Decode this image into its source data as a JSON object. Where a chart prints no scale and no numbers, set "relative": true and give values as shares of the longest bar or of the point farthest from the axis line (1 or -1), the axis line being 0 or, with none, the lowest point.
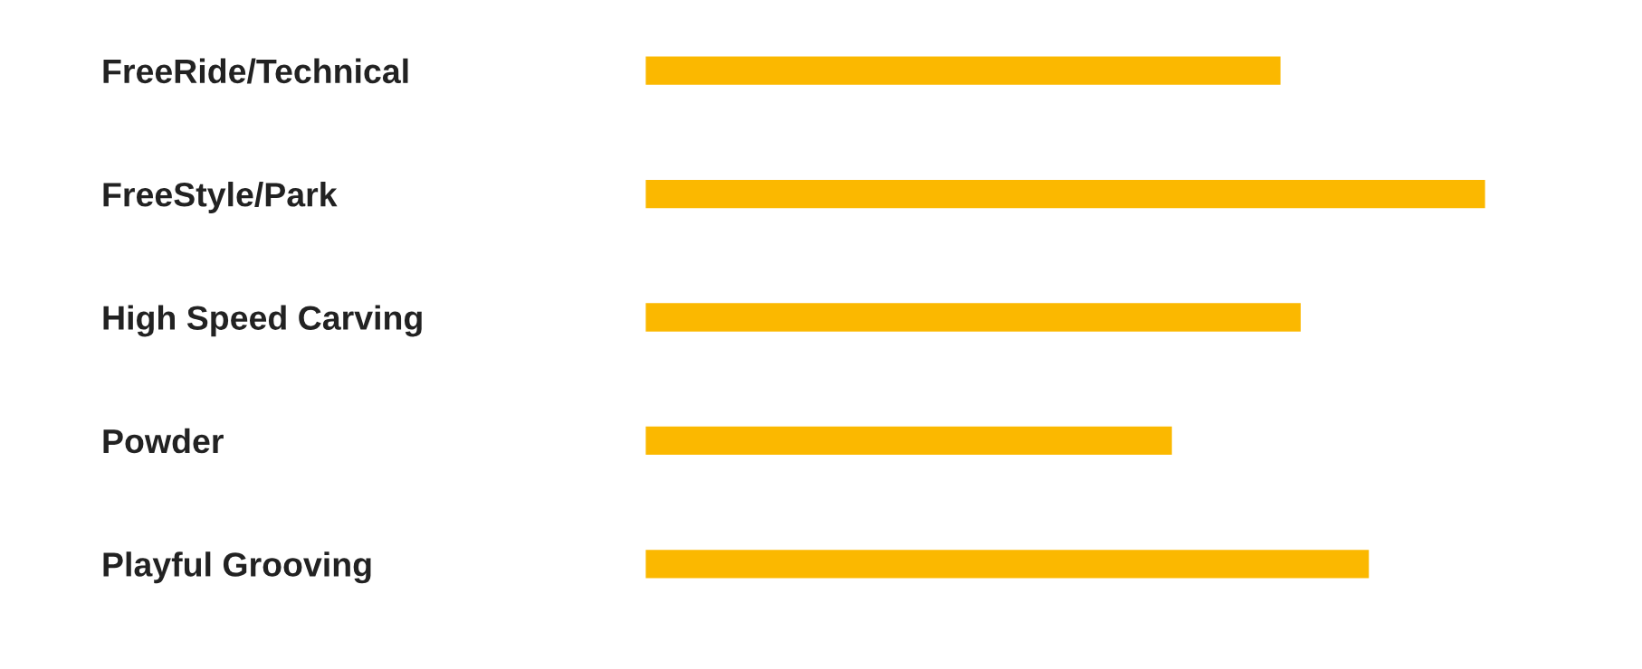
{
  "chart_data": {
    "type": "bar",
    "orientation": "horizontal",
    "relative": true,
    "categories": [
      "FreeRide/Technical",
      "FreeStyle/Park",
      "High Speed Carving",
      "Powder",
      "Playful Grooving"
    ],
    "values": [
      0.757,
      1,
      0.781,
      0.628,
      0.862
    ],
    "color": "#fbb800",
    "grid": false,
    "legend": false
  }
}
